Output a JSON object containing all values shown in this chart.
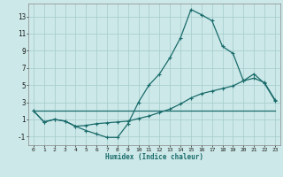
{
  "xlabel": "Humidex (Indice chaleur)",
  "bg_color": "#cce8e8",
  "grid_color": "#aacfcf",
  "line_color": "#1a6b6b",
  "xlim": [
    -0.5,
    23.5
  ],
  "ylim": [
    -2.0,
    14.5
  ],
  "xticks": [
    0,
    1,
    2,
    3,
    4,
    5,
    6,
    7,
    8,
    9,
    10,
    11,
    12,
    13,
    14,
    15,
    16,
    17,
    18,
    19,
    20,
    21,
    22,
    23
  ],
  "yticks": [
    -1,
    1,
    3,
    5,
    7,
    9,
    11,
    13
  ],
  "series1_x": [
    0,
    1,
    2,
    3,
    4,
    5,
    6,
    7,
    8,
    9,
    10,
    11,
    12,
    13,
    14,
    15,
    16,
    17,
    18,
    19,
    20,
    21,
    22,
    23
  ],
  "series1_y": [
    2.0,
    0.7,
    1.0,
    0.8,
    0.2,
    -0.3,
    -0.7,
    -1.1,
    -1.1,
    0.5,
    3.0,
    5.0,
    6.3,
    8.2,
    10.5,
    13.8,
    13.2,
    12.5,
    9.5,
    8.7,
    5.5,
    6.3,
    5.2,
    3.2
  ],
  "series2_x": [
    0,
    1,
    2,
    3,
    4,
    5,
    6,
    7,
    8,
    9,
    10,
    11,
    12,
    13,
    14,
    15,
    16,
    17,
    18,
    19,
    20,
    21,
    22,
    23
  ],
  "series2_y": [
    2.0,
    0.7,
    1.0,
    0.8,
    0.2,
    0.3,
    0.5,
    0.6,
    0.7,
    0.8,
    1.1,
    1.4,
    1.8,
    2.2,
    2.8,
    3.5,
    4.0,
    4.3,
    4.6,
    4.9,
    5.5,
    5.8,
    5.3,
    3.3
  ],
  "series3_x": [
    0,
    23
  ],
  "series3_y": [
    2.0,
    2.0
  ],
  "line_width": 0.9,
  "marker_size": 2.5
}
